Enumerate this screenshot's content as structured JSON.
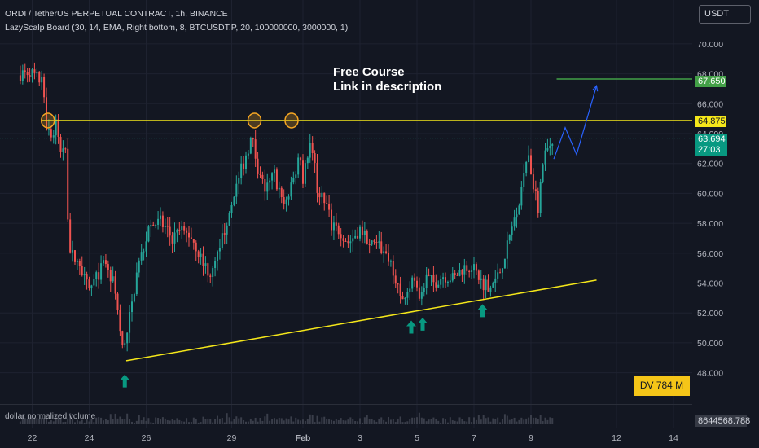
{
  "legend": {
    "title": "ORDI / TetherUS PERPETUAL CONTRACT, 1h, BINANCE",
    "indicator": "LazyScalp Board (30, 14, EMA, Right bottom, 8, BTCUSDT.P, 20, 100000000, 3000000, 1)"
  },
  "toolbar": {
    "currency": "USDT"
  },
  "annotation": {
    "line1": "Free Course",
    "line2": "Link in description"
  },
  "dv_badge": "DV 784 M",
  "volume_label": "dollar normalized volume",
  "price_tags": {
    "green": "67.650",
    "yellow": "64.875",
    "current_price": "63.694",
    "countdown": "27:03",
    "volume_value": "8644568.788"
  },
  "colors": {
    "background": "#131722",
    "up": "#26a69a",
    "down": "#ef5350",
    "yellow": "#f5e71a",
    "green": "#43a047",
    "projection": "#2962ff",
    "marker_arrow": "#089981"
  },
  "icons": [
    "up-arrow-icon",
    "circle-marker-icon"
  ],
  "chart_data": {
    "type": "candlestick",
    "y_axis": {
      "labels": [
        "70.000",
        "68.000",
        "66.000",
        "64.000",
        "62.000",
        "60.000",
        "58.000",
        "56.000",
        "54.000",
        "52.000",
        "50.000",
        "48.000"
      ],
      "values": [
        70,
        68,
        66,
        64,
        62,
        60,
        58,
        56,
        54,
        52,
        50,
        48
      ],
      "range": [
        46.5,
        71.5
      ]
    },
    "x_axis": {
      "labels": [
        "22",
        "24",
        "26",
        "29",
        "Feb",
        "3",
        "5",
        "7",
        "9",
        "12",
        "14"
      ],
      "positions": [
        0.5,
        2.5,
        4.5,
        7.5,
        10,
        12,
        14,
        16,
        18,
        21,
        23
      ]
    },
    "anchors": [
      {
        "t": 0,
        "v": 67.9
      },
      {
        "t": 0.4,
        "v": 68.2
      },
      {
        "t": 0.9,
        "v": 67.3
      },
      {
        "t": 1.0,
        "v": 64.5
      },
      {
        "t": 1.2,
        "v": 63.7
      },
      {
        "t": 1.35,
        "v": 64.7
      },
      {
        "t": 1.5,
        "v": 62.6
      },
      {
        "t": 1.65,
        "v": 63.5
      },
      {
        "t": 1.8,
        "v": 56.2
      },
      {
        "t": 2.1,
        "v": 55.3
      },
      {
        "t": 2.5,
        "v": 53.5
      },
      {
        "t": 3.0,
        "v": 55.2
      },
      {
        "t": 3.4,
        "v": 53.9
      },
      {
        "t": 3.6,
        "v": 50.5
      },
      {
        "t": 3.7,
        "v": 49.2
      },
      {
        "t": 3.9,
        "v": 51.5
      },
      {
        "t": 4.2,
        "v": 55.0
      },
      {
        "t": 4.6,
        "v": 57.8
      },
      {
        "t": 5.0,
        "v": 58.1
      },
      {
        "t": 5.4,
        "v": 57.0
      },
      {
        "t": 5.7,
        "v": 57.5
      },
      {
        "t": 6.1,
        "v": 57.1
      },
      {
        "t": 6.5,
        "v": 55.3
      },
      {
        "t": 6.8,
        "v": 54.5
      },
      {
        "t": 7.2,
        "v": 57.2
      },
      {
        "t": 7.6,
        "v": 60.3
      },
      {
        "t": 8.0,
        "v": 62.5
      },
      {
        "t": 8.2,
        "v": 63.8
      },
      {
        "t": 8.45,
        "v": 61.2
      },
      {
        "t": 8.7,
        "v": 60.2
      },
      {
        "t": 9.0,
        "v": 61.3
      },
      {
        "t": 9.3,
        "v": 59.1
      },
      {
        "t": 9.6,
        "v": 60.4
      },
      {
        "t": 9.9,
        "v": 62.8
      },
      {
        "t": 10.0,
        "v": 61.0
      },
      {
        "t": 10.3,
        "v": 63.6
      },
      {
        "t": 10.5,
        "v": 60.2
      },
      {
        "t": 10.8,
        "v": 59.4
      },
      {
        "t": 11.0,
        "v": 57.8
      },
      {
        "t": 11.3,
        "v": 57.5
      },
      {
        "t": 11.6,
        "v": 56.7
      },
      {
        "t": 12.0,
        "v": 57.6
      },
      {
        "t": 12.4,
        "v": 56.6
      },
      {
        "t": 12.8,
        "v": 56.3
      },
      {
        "t": 13.1,
        "v": 55.4
      },
      {
        "t": 13.3,
        "v": 54.0
      },
      {
        "t": 13.45,
        "v": 52.4
      },
      {
        "t": 13.6,
        "v": 53.5
      },
      {
        "t": 13.9,
        "v": 54.2
      },
      {
        "t": 14.1,
        "v": 52.6
      },
      {
        "t": 14.3,
        "v": 54.4
      },
      {
        "t": 14.6,
        "v": 54.0
      },
      {
        "t": 14.9,
        "v": 54.5
      },
      {
        "t": 15.3,
        "v": 54.3
      },
      {
        "t": 15.6,
        "v": 55.0
      },
      {
        "t": 15.9,
        "v": 55.2
      },
      {
        "t": 16.3,
        "v": 54.0
      },
      {
        "t": 16.6,
        "v": 53.8
      },
      {
        "t": 16.9,
        "v": 54.7
      },
      {
        "t": 17.1,
        "v": 56.0
      },
      {
        "t": 17.3,
        "v": 57.5
      },
      {
        "t": 17.5,
        "v": 59.0
      },
      {
        "t": 17.7,
        "v": 60.5
      },
      {
        "t": 17.9,
        "v": 62.7
      },
      {
        "t": 18.1,
        "v": 60.3
      },
      {
        "t": 18.25,
        "v": 59.1
      },
      {
        "t": 18.4,
        "v": 62.0
      },
      {
        "t": 18.6,
        "v": 63.0
      },
      {
        "t": 18.75,
        "v": 63.7
      }
    ],
    "horizontal_lines": [
      {
        "name": "resistance",
        "value": 64.875,
        "color": "#f5e71a"
      },
      {
        "name": "target",
        "value": 67.65,
        "color": "#43a047"
      }
    ],
    "trendline": {
      "from": {
        "t": 3.8,
        "v": 48.8
      },
      "to": {
        "t": 20.3,
        "v": 54.2
      }
    },
    "projection": [
      {
        "t": 18.8,
        "v": 62.3
      },
      {
        "t": 19.2,
        "v": 64.4
      },
      {
        "t": 19.6,
        "v": 62.6
      },
      {
        "t": 20.3,
        "v": 67.2
      }
    ],
    "circle_markers": [
      {
        "t": 1.05,
        "v": 64.875
      },
      {
        "t": 8.3,
        "v": 64.875
      },
      {
        "t": 9.6,
        "v": 64.875
      }
    ],
    "arrow_markers": [
      {
        "t": 3.75,
        "v": 47.4
      },
      {
        "t": 13.8,
        "v": 51.0
      },
      {
        "t": 14.2,
        "v": 51.2
      },
      {
        "t": 16.3,
        "v": 52.1
      }
    ]
  }
}
